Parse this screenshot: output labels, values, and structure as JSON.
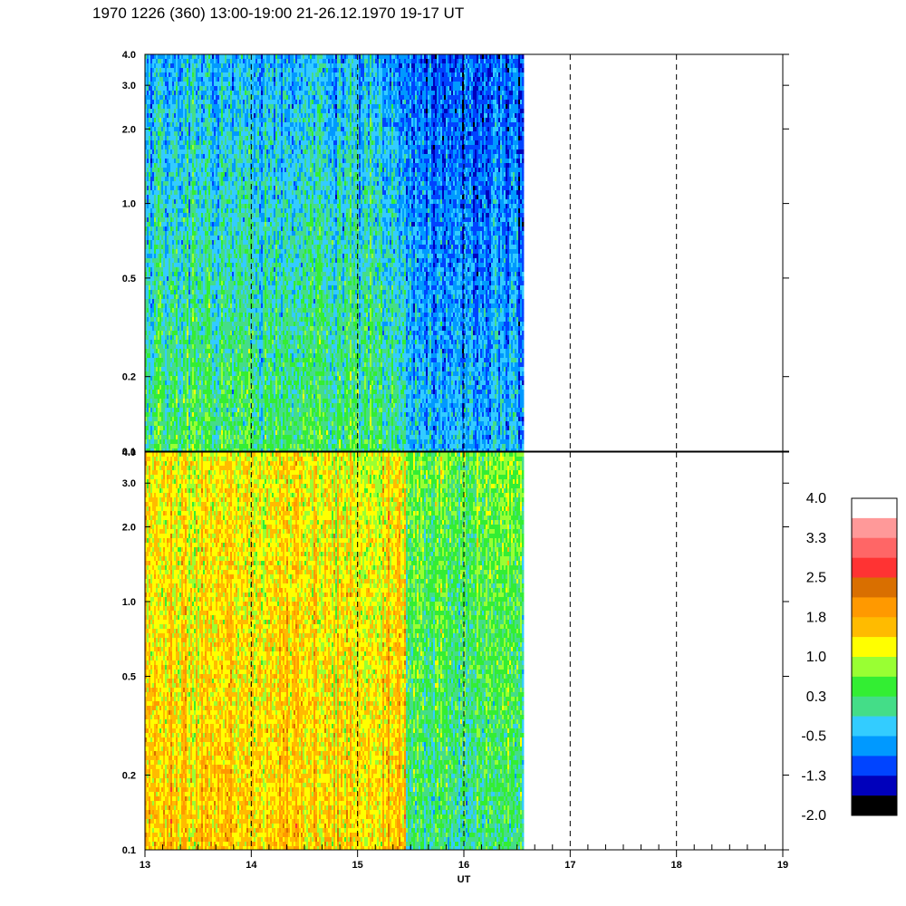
{
  "title": "1970 1226 (360) 13:00-19:00 21-26.12.1970  19-17 UT",
  "chart_data": [
    {
      "type": "heatmap",
      "panel": "upper",
      "title": "",
      "xlabel": "",
      "ylabel": "",
      "xlim": [
        13,
        19
      ],
      "ylim": [
        0.1,
        4.0
      ],
      "yscale": "log",
      "ytick_labels": [
        "0.1",
        "0.2",
        "0.5",
        "1.0",
        "2.0",
        "3.0",
        "4.0"
      ],
      "ytick_values": [
        0.1,
        0.2,
        0.5,
        1.0,
        2.0,
        3.0,
        4.0
      ],
      "data_x_end": 16.55,
      "dashed_vlines": [
        14,
        15,
        16,
        17,
        18
      ],
      "segments": [
        {
          "x": [
            13.0,
            15.45
          ],
          "low_level": 0.3,
          "high_level": -0.5
        },
        {
          "x": [
            15.45,
            16.55
          ],
          "low_level": -0.5,
          "high_level": -1.0
        }
      ]
    },
    {
      "type": "heatmap",
      "panel": "lower",
      "title": "",
      "xlabel": "UT",
      "ylabel": "",
      "xlim": [
        13,
        19
      ],
      "ylim": [
        0.1,
        4.0
      ],
      "yscale": "log",
      "ytick_labels": [
        "0.1",
        "0.2",
        "0.5",
        "1.0",
        "2.0",
        "3.0",
        "4.0"
      ],
      "ytick_values": [
        0.1,
        0.2,
        0.5,
        1.0,
        2.0,
        3.0,
        4.0
      ],
      "xtick_labels": [
        "13",
        "14",
        "15",
        "16",
        "17",
        "18",
        "19"
      ],
      "xtick_values": [
        13,
        14,
        15,
        16,
        17,
        18,
        19
      ],
      "data_x_end": 16.55,
      "dashed_vlines": [
        14,
        15,
        16,
        17,
        18
      ],
      "segments": [
        {
          "x": [
            13.0,
            15.45
          ],
          "low_level": 1.5,
          "high_level": 1.2
        },
        {
          "x": [
            15.45,
            16.55
          ],
          "low_level": 0.1,
          "high_level": 0.6
        }
      ]
    }
  ],
  "colorbar": {
    "labels": [
      "4.0",
      "3.3",
      "2.5",
      "1.8",
      "1.0",
      "0.3",
      "-0.5",
      "-1.3",
      "-2.0"
    ],
    "colors_top_to_bottom": [
      "#ffffff",
      "#ff9999",
      "#ff6666",
      "#ff3333",
      "#d96f00",
      "#ff9900",
      "#ffbb00",
      "#ffff00",
      "#99ff33",
      "#33ee33",
      "#44dd88",
      "#33ccff",
      "#0099ff",
      "#0044ff",
      "#0000bb",
      "#000000"
    ]
  }
}
